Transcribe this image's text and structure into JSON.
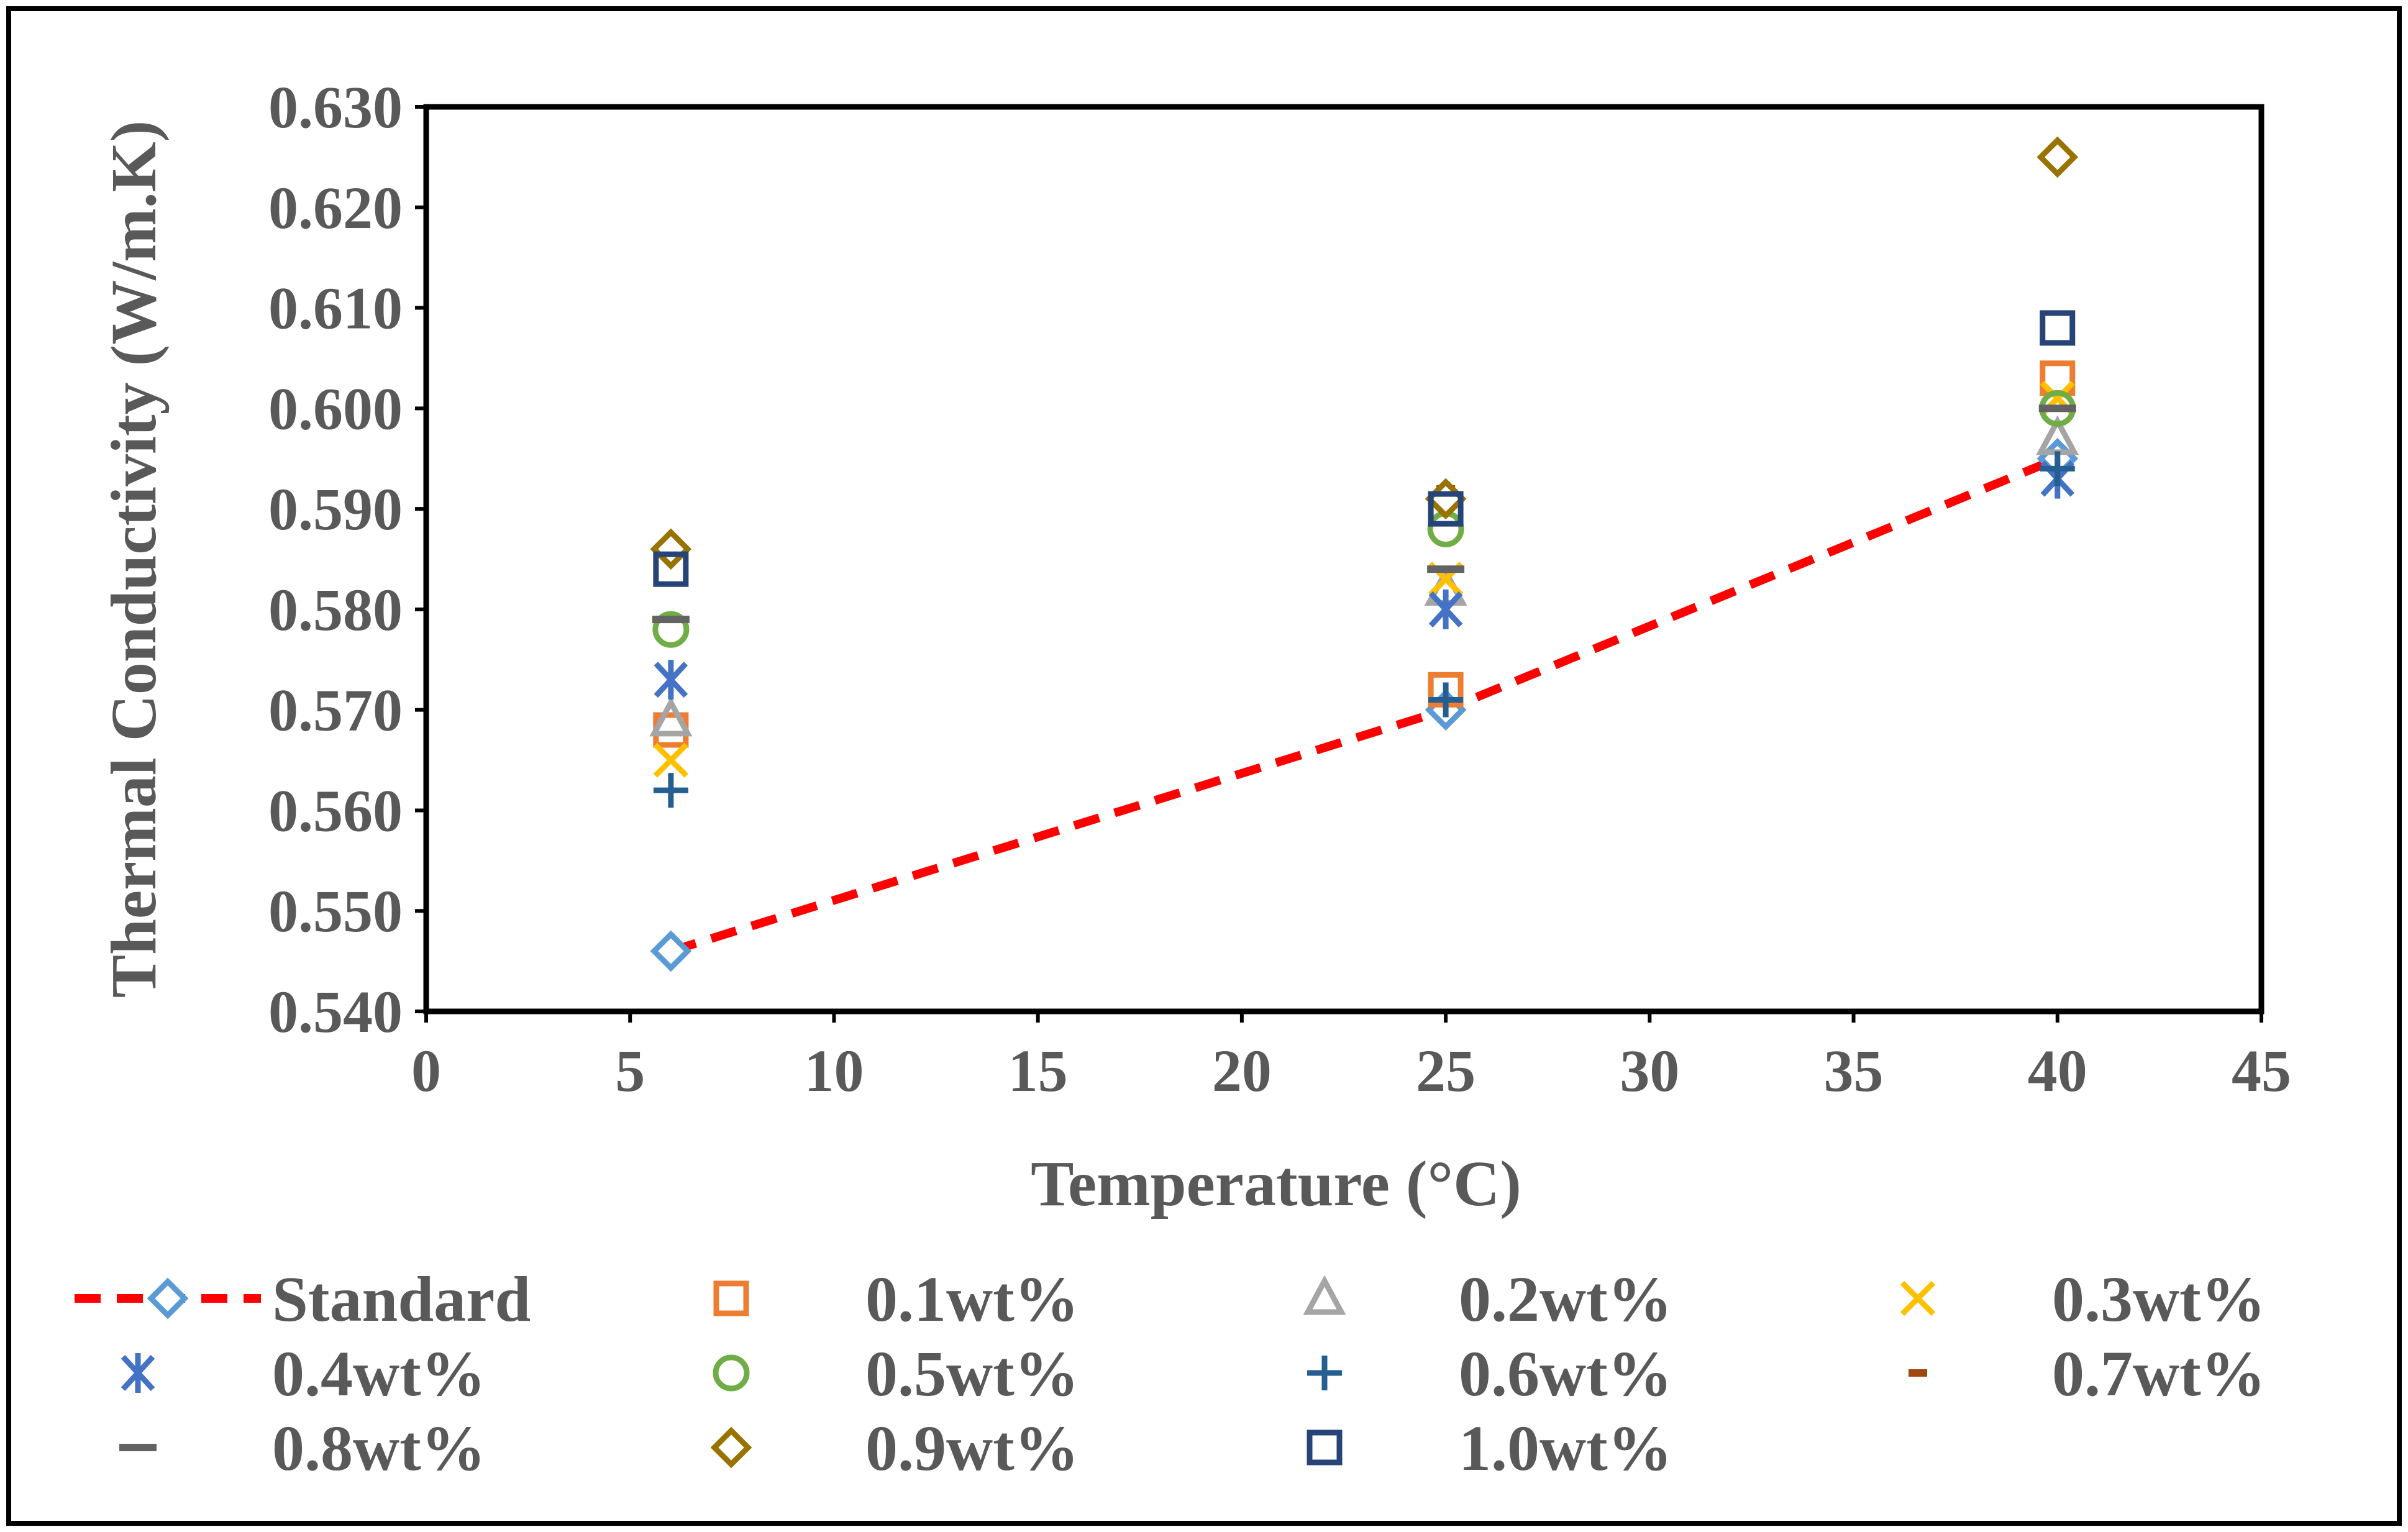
{
  "chart_data": {
    "type": "scatter",
    "title": "",
    "xlabel": "Temperature (°C)",
    "ylabel": "Thermal Conductivity (W/m.K)",
    "xlim": [
      0,
      45
    ],
    "ylim": [
      0.54,
      0.63
    ],
    "xticks": [
      "0",
      "5",
      "10",
      "15",
      "20",
      "25",
      "30",
      "35",
      "40",
      "45"
    ],
    "yticks": [
      "0.540",
      "0.550",
      "0.560",
      "0.570",
      "0.580",
      "0.590",
      "0.600",
      "0.610",
      "0.620",
      "0.630"
    ],
    "grid": false,
    "legend_position": "bottom",
    "series": [
      {
        "name": "Standard",
        "marker": "diamond-open",
        "line": "dashed",
        "color": "#5B9BD5",
        "line_color": "#FF0000",
        "x": [
          6,
          25,
          40
        ],
        "y": [
          0.546,
          0.57,
          0.595
        ]
      },
      {
        "name": "0.1wt%",
        "marker": "square-open",
        "color": "#ED7D31",
        "x": [
          6,
          25,
          40
        ],
        "y": [
          0.568,
          0.572,
          0.603
        ]
      },
      {
        "name": "0.2wt%",
        "marker": "triangle-open",
        "color": "#A5A5A5",
        "x": [
          6,
          25,
          40
        ],
        "y": [
          0.569,
          0.582,
          0.597
        ]
      },
      {
        "name": "0.3wt%",
        "marker": "x",
        "color": "#FFC000",
        "x": [
          6,
          25,
          40
        ],
        "y": [
          0.565,
          0.583,
          0.601
        ]
      },
      {
        "name": "0.4wt%",
        "marker": "asterisk",
        "color": "#4472C4",
        "x": [
          6,
          25,
          40
        ],
        "y": [
          0.573,
          0.58,
          0.593
        ]
      },
      {
        "name": "0.5wt%",
        "marker": "circle-open",
        "color": "#70AD47",
        "x": [
          6,
          25,
          40
        ],
        "y": [
          0.578,
          0.588,
          0.6
        ]
      },
      {
        "name": "0.6wt%",
        "marker": "plus",
        "color": "#255E91",
        "x": [
          6,
          25,
          40
        ],
        "y": [
          0.562,
          0.571,
          0.594
        ]
      },
      {
        "name": "0.7wt%",
        "marker": "dash-small",
        "color": "#9E480E",
        "x": [
          6,
          25,
          40
        ],
        "y": [
          0.586,
          0.592,
          0.625
        ]
      },
      {
        "name": "0.8wt%",
        "marker": "dash",
        "color": "#636363",
        "x": [
          6,
          25,
          40
        ],
        "y": [
          0.579,
          0.584,
          0.6
        ]
      },
      {
        "name": "0.9wt%",
        "marker": "diamond-open",
        "color": "#997300",
        "x": [
          6,
          25,
          40
        ],
        "y": [
          0.586,
          0.591,
          0.625
        ]
      },
      {
        "name": "1.0wt%",
        "marker": "square-open",
        "color": "#264478",
        "x": [
          6,
          25,
          40
        ],
        "y": [
          0.584,
          0.59,
          0.608
        ]
      }
    ]
  }
}
